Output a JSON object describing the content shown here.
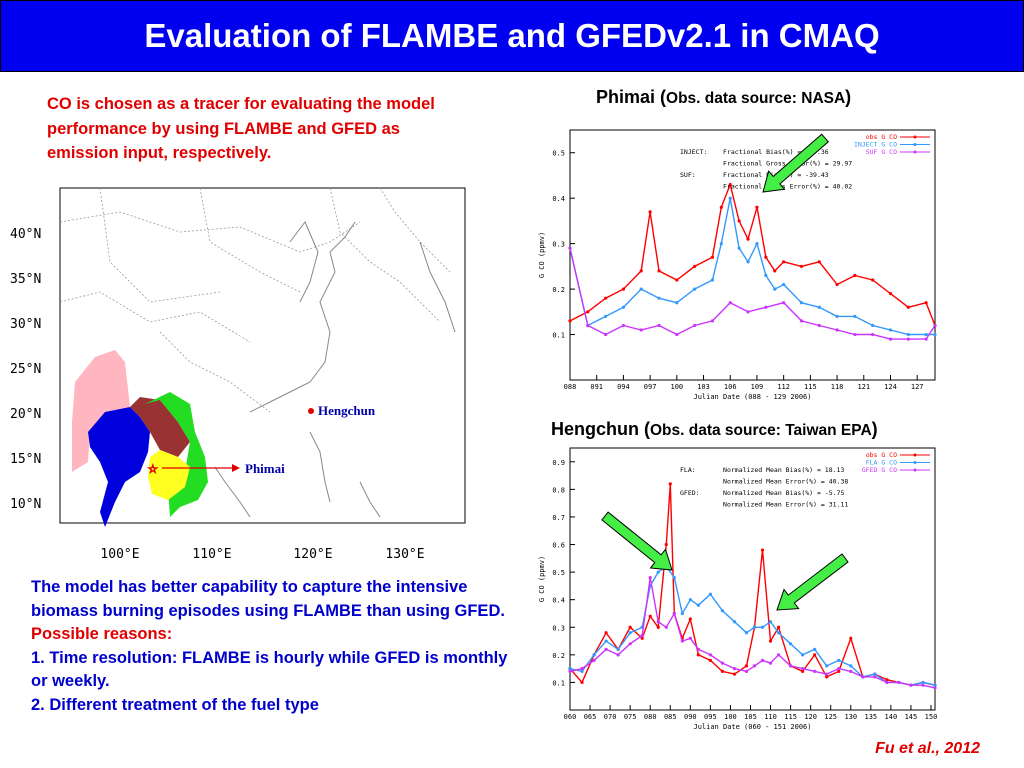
{
  "title": "Evaluation of FLAMBE and GFEDv2.1 in CMAQ",
  "intro": "CO is chosen as a tracer for evaluating the model performance by using FLAMBE and GFED as emission input, respectively.",
  "conclusion": {
    "line1": "The model has better capability to capture the intensive biomass burning episodes using FLAMBE than using GFED.",
    "reasons_title": "Possible reasons:",
    "reason1": "1. Time resolution: FLAMBE is hourly while GFED is monthly or weekly.",
    "reason2": "2. Different treatment of the fuel type"
  },
  "citation": "Fu et al., 2012",
  "map": {
    "lat_labels": [
      "40°N",
      "35°N",
      "30°N",
      "25°N",
      "20°N",
      "15°N",
      "10°N"
    ],
    "lon_labels": [
      "100°E",
      "110°E",
      "120°E",
      "130°E"
    ],
    "stations": [
      {
        "name": "Hengchun",
        "lon": 120.8,
        "lat": 22.0
      },
      {
        "name": "Phimai",
        "lon": 102.5,
        "lat": 15.2
      }
    ],
    "colors": {
      "pink": "#ffb6c1",
      "blue": "#0000dd",
      "brown": "#993333",
      "green": "#22dd22",
      "yellow": "#ffff22"
    }
  },
  "charts": {
    "phimai_title": "Phimai (",
    "phimai_source": "Obs. data source: NASA",
    "phimai_close": ")",
    "hengchun_title": "Hengchun (",
    "hengchun_source": "Obs. data source: Taiwan EPA",
    "hengchun_close": ")"
  },
  "chart_data": [
    {
      "type": "line",
      "ylabel": "G CO   (ppmv)",
      "xlabel": "Julian Date     (088 - 129 2006)",
      "xlim": [
        88,
        129
      ],
      "ylim": [
        0,
        0.55
      ],
      "x_ticks": [
        "088",
        "091",
        "094",
        "097",
        "100",
        "103",
        "106",
        "109",
        "112",
        "115",
        "118",
        "121",
        "124",
        "127"
      ],
      "y_ticks": [
        "0.1",
        "0.2",
        "0.3",
        "0.4",
        "0.5"
      ],
      "annotations": [
        "INJECT:    Fractional Bias(%) = -27.36",
        "           Fractional Gross Error(%) = 29.97",
        "SUF:       Fractional Bias(%) = -39.43",
        "           Fractional Gross Error(%) = 40.02"
      ],
      "series": [
        {
          "name": "obs G CO",
          "color": "#ff0000",
          "x": [
            88,
            90,
            92,
            94,
            96,
            97,
            98,
            100,
            102,
            104,
            105,
            106,
            107,
            108,
            109,
            110,
            111,
            112,
            114,
            116,
            118,
            120,
            122,
            124,
            126,
            128,
            129
          ],
          "y": [
            0.13,
            0.15,
            0.18,
            0.2,
            0.24,
            0.37,
            0.24,
            0.22,
            0.25,
            0.27,
            0.38,
            0.43,
            0.35,
            0.31,
            0.38,
            0.27,
            0.24,
            0.26,
            0.25,
            0.26,
            0.21,
            0.23,
            0.22,
            0.19,
            0.16,
            0.17,
            0.12
          ]
        },
        {
          "name": "INJECT G CO",
          "color": "#3399ff",
          "x": [
            88,
            90,
            92,
            94,
            96,
            98,
            100,
            102,
            104,
            105,
            106,
            107,
            108,
            109,
            110,
            111,
            112,
            114,
            116,
            118,
            120,
            122,
            124,
            126,
            128,
            129
          ],
          "y": [
            0.29,
            0.12,
            0.14,
            0.16,
            0.2,
            0.18,
            0.17,
            0.2,
            0.22,
            0.3,
            0.4,
            0.29,
            0.26,
            0.3,
            0.23,
            0.2,
            0.21,
            0.17,
            0.16,
            0.14,
            0.14,
            0.12,
            0.11,
            0.1,
            0.1,
            0.1
          ]
        },
        {
          "name": "SUF G CO",
          "color": "#cc33ff",
          "x": [
            88,
            90,
            92,
            94,
            96,
            98,
            100,
            102,
            104,
            106,
            108,
            110,
            112,
            114,
            116,
            118,
            120,
            122,
            124,
            126,
            128,
            129
          ],
          "y": [
            0.29,
            0.12,
            0.1,
            0.12,
            0.11,
            0.12,
            0.1,
            0.12,
            0.13,
            0.17,
            0.15,
            0.16,
            0.17,
            0.13,
            0.12,
            0.11,
            0.1,
            0.1,
            0.09,
            0.09,
            0.09,
            0.12
          ]
        }
      ]
    },
    {
      "type": "line",
      "ylabel": "G CO   (ppmv)",
      "xlabel": "Julian Date     (060 - 151 2006)",
      "xlim": [
        60,
        151
      ],
      "ylim": [
        0,
        0.95
      ],
      "x_ticks": [
        "060",
        "065",
        "070",
        "075",
        "080",
        "085",
        "090",
        "095",
        "100",
        "105",
        "110",
        "115",
        "120",
        "125",
        "130",
        "135",
        "140",
        "145",
        "150"
      ],
      "y_ticks": [
        "0.1",
        "0.2",
        "0.3",
        "0.4",
        "0.5",
        "0.6",
        "0.7",
        "0.8",
        "0.9"
      ],
      "annotations": [
        "FLA:       Normalized Mean Bias(%) = 18.13",
        "           Normalized Mean Error(%) = 40.38",
        "GFED:      Normalized Mean Bias(%) = -5.75",
        "           Normalized Mean Error(%) = 31.11"
      ],
      "series": [
        {
          "name": "obs G CO",
          "color": "#ff0000",
          "x": [
            60,
            63,
            66,
            69,
            72,
            75,
            78,
            80,
            82,
            84,
            85,
            86,
            88,
            90,
            92,
            95,
            98,
            101,
            104,
            106,
            108,
            110,
            112,
            115,
            118,
            121,
            124,
            127,
            130,
            133,
            136,
            139,
            142,
            145,
            148,
            151
          ],
          "y": [
            0.15,
            0.1,
            0.2,
            0.28,
            0.22,
            0.3,
            0.26,
            0.34,
            0.3,
            0.6,
            0.82,
            0.35,
            0.26,
            0.33,
            0.2,
            0.18,
            0.14,
            0.13,
            0.16,
            0.3,
            0.58,
            0.25,
            0.3,
            0.16,
            0.14,
            0.2,
            0.12,
            0.14,
            0.26,
            0.12,
            0.13,
            0.11,
            0.1,
            0.09,
            0.1,
            0.09
          ]
        },
        {
          "name": "FLA G CO",
          "color": "#3399ff",
          "x": [
            60,
            63,
            66,
            69,
            72,
            75,
            78,
            80,
            82,
            84,
            86,
            88,
            90,
            92,
            95,
            98,
            101,
            104,
            106,
            108,
            110,
            112,
            115,
            118,
            121,
            124,
            127,
            130,
            133,
            136,
            139,
            142,
            145,
            148,
            151
          ],
          "y": [
            0.15,
            0.14,
            0.2,
            0.25,
            0.22,
            0.28,
            0.3,
            0.45,
            0.5,
            0.52,
            0.48,
            0.35,
            0.4,
            0.38,
            0.42,
            0.36,
            0.32,
            0.28,
            0.3,
            0.3,
            0.32,
            0.28,
            0.24,
            0.2,
            0.22,
            0.16,
            0.18,
            0.16,
            0.12,
            0.13,
            0.1,
            0.1,
            0.09,
            0.1,
            0.09
          ]
        },
        {
          "name": "GFED G CO",
          "color": "#cc33ff",
          "x": [
            60,
            63,
            66,
            69,
            72,
            75,
            78,
            80,
            82,
            84,
            86,
            88,
            90,
            92,
            95,
            98,
            101,
            104,
            106,
            108,
            110,
            112,
            115,
            118,
            121,
            124,
            127,
            130,
            133,
            136,
            139,
            142,
            145,
            148,
            151
          ],
          "y": [
            0.14,
            0.15,
            0.18,
            0.22,
            0.2,
            0.24,
            0.27,
            0.48,
            0.32,
            0.3,
            0.35,
            0.25,
            0.26,
            0.22,
            0.2,
            0.17,
            0.15,
            0.14,
            0.16,
            0.18,
            0.17,
            0.2,
            0.16,
            0.15,
            0.14,
            0.13,
            0.15,
            0.14,
            0.12,
            0.12,
            0.1,
            0.1,
            0.09,
            0.09,
            0.08
          ]
        }
      ]
    }
  ]
}
